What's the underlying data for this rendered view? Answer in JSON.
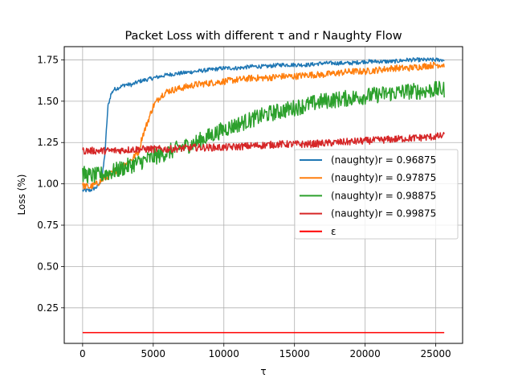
{
  "chart_data": {
    "type": "line",
    "title": "Packet Loss with different τ and r Naughty Flow",
    "xlabel": "τ",
    "ylabel": "Loss (%)",
    "xlim": [
      -1300,
      26900
    ],
    "ylim": [
      0.035,
      1.83
    ],
    "grid": true,
    "legend_placement": "center-right",
    "x_ticks": [
      0,
      5000,
      10000,
      15000,
      20000,
      25000
    ],
    "x_tick_labels": [
      "0",
      "5000",
      "10000",
      "15000",
      "20000",
      "25000"
    ],
    "y_ticks": [
      0.25,
      0.5,
      0.75,
      1.0,
      1.25,
      1.5,
      1.75
    ],
    "y_tick_labels": [
      "0.25",
      "0.50",
      "0.75",
      "1.00",
      "1.25",
      "1.50",
      "1.75"
    ],
    "series": [
      {
        "name": "(naughty)r = 0.96875",
        "color": "#1f77b4",
        "x": [
          0,
          500,
          1000,
          1200,
          1400,
          1600,
          1700,
          1800,
          2000,
          2200,
          2500,
          3000,
          3500,
          4000,
          5000,
          6000,
          7000,
          8000,
          9000,
          10000,
          11000,
          12000,
          13000,
          14000,
          15000,
          16000,
          17000,
          18000,
          19000,
          20000,
          21000,
          22000,
          23000,
          24000,
          25000,
          25600
        ],
        "y": [
          0.96,
          0.96,
          0.98,
          1.0,
          1.05,
          1.2,
          1.35,
          1.47,
          1.54,
          1.57,
          1.58,
          1.6,
          1.6,
          1.62,
          1.64,
          1.66,
          1.67,
          1.68,
          1.69,
          1.7,
          1.7,
          1.71,
          1.71,
          1.72,
          1.72,
          1.72,
          1.73,
          1.73,
          1.73,
          1.74,
          1.74,
          1.74,
          1.75,
          1.75,
          1.75,
          1.75
        ],
        "noise": 0.012
      },
      {
        "name": "(naughty)r = 0.97875",
        "color": "#ff7f0e",
        "x": [
          0,
          500,
          1000,
          1500,
          2000,
          2500,
          3000,
          3500,
          4000,
          4200,
          4500,
          5000,
          5500,
          6000,
          7000,
          8000,
          9000,
          10000,
          11000,
          12000,
          13000,
          14000,
          15000,
          16000,
          17000,
          18000,
          19000,
          20000,
          21000,
          22000,
          23000,
          24000,
          25000,
          25600
        ],
        "y": [
          0.99,
          0.98,
          1.0,
          1.03,
          1.06,
          1.09,
          1.12,
          1.15,
          1.2,
          1.28,
          1.35,
          1.47,
          1.53,
          1.56,
          1.58,
          1.6,
          1.61,
          1.62,
          1.63,
          1.64,
          1.64,
          1.65,
          1.65,
          1.66,
          1.66,
          1.67,
          1.68,
          1.68,
          1.69,
          1.7,
          1.7,
          1.71,
          1.72,
          1.72
        ],
        "noise": 0.02
      },
      {
        "name": "(naughty)r = 0.98875",
        "color": "#2ca02c",
        "x": [
          0,
          500,
          1000,
          2000,
          3000,
          4000,
          5000,
          6000,
          7000,
          8000,
          9000,
          10000,
          11000,
          12000,
          13000,
          14000,
          15000,
          16000,
          17000,
          18000,
          19000,
          20000,
          21000,
          22000,
          23000,
          24000,
          25000,
          25600
        ],
        "y": [
          1.06,
          1.05,
          1.05,
          1.07,
          1.1,
          1.13,
          1.16,
          1.19,
          1.22,
          1.25,
          1.29,
          1.33,
          1.36,
          1.39,
          1.42,
          1.44,
          1.46,
          1.48,
          1.5,
          1.51,
          1.52,
          1.53,
          1.54,
          1.55,
          1.56,
          1.56,
          1.57,
          1.57
        ],
        "noise": 0.05
      },
      {
        "name": "(naughty)r = 0.99875",
        "color": "#d62728",
        "x": [
          0,
          2000,
          4000,
          6000,
          8000,
          10000,
          12000,
          14000,
          16000,
          18000,
          20000,
          22000,
          24000,
          25600
        ],
        "y": [
          1.2,
          1.2,
          1.21,
          1.21,
          1.22,
          1.22,
          1.23,
          1.24,
          1.24,
          1.25,
          1.26,
          1.27,
          1.28,
          1.29
        ],
        "noise": 0.022
      },
      {
        "name": "ε",
        "color": "#ff0000",
        "x": [
          0,
          25600
        ],
        "y": [
          0.1,
          0.1
        ],
        "noise": 0
      }
    ]
  }
}
